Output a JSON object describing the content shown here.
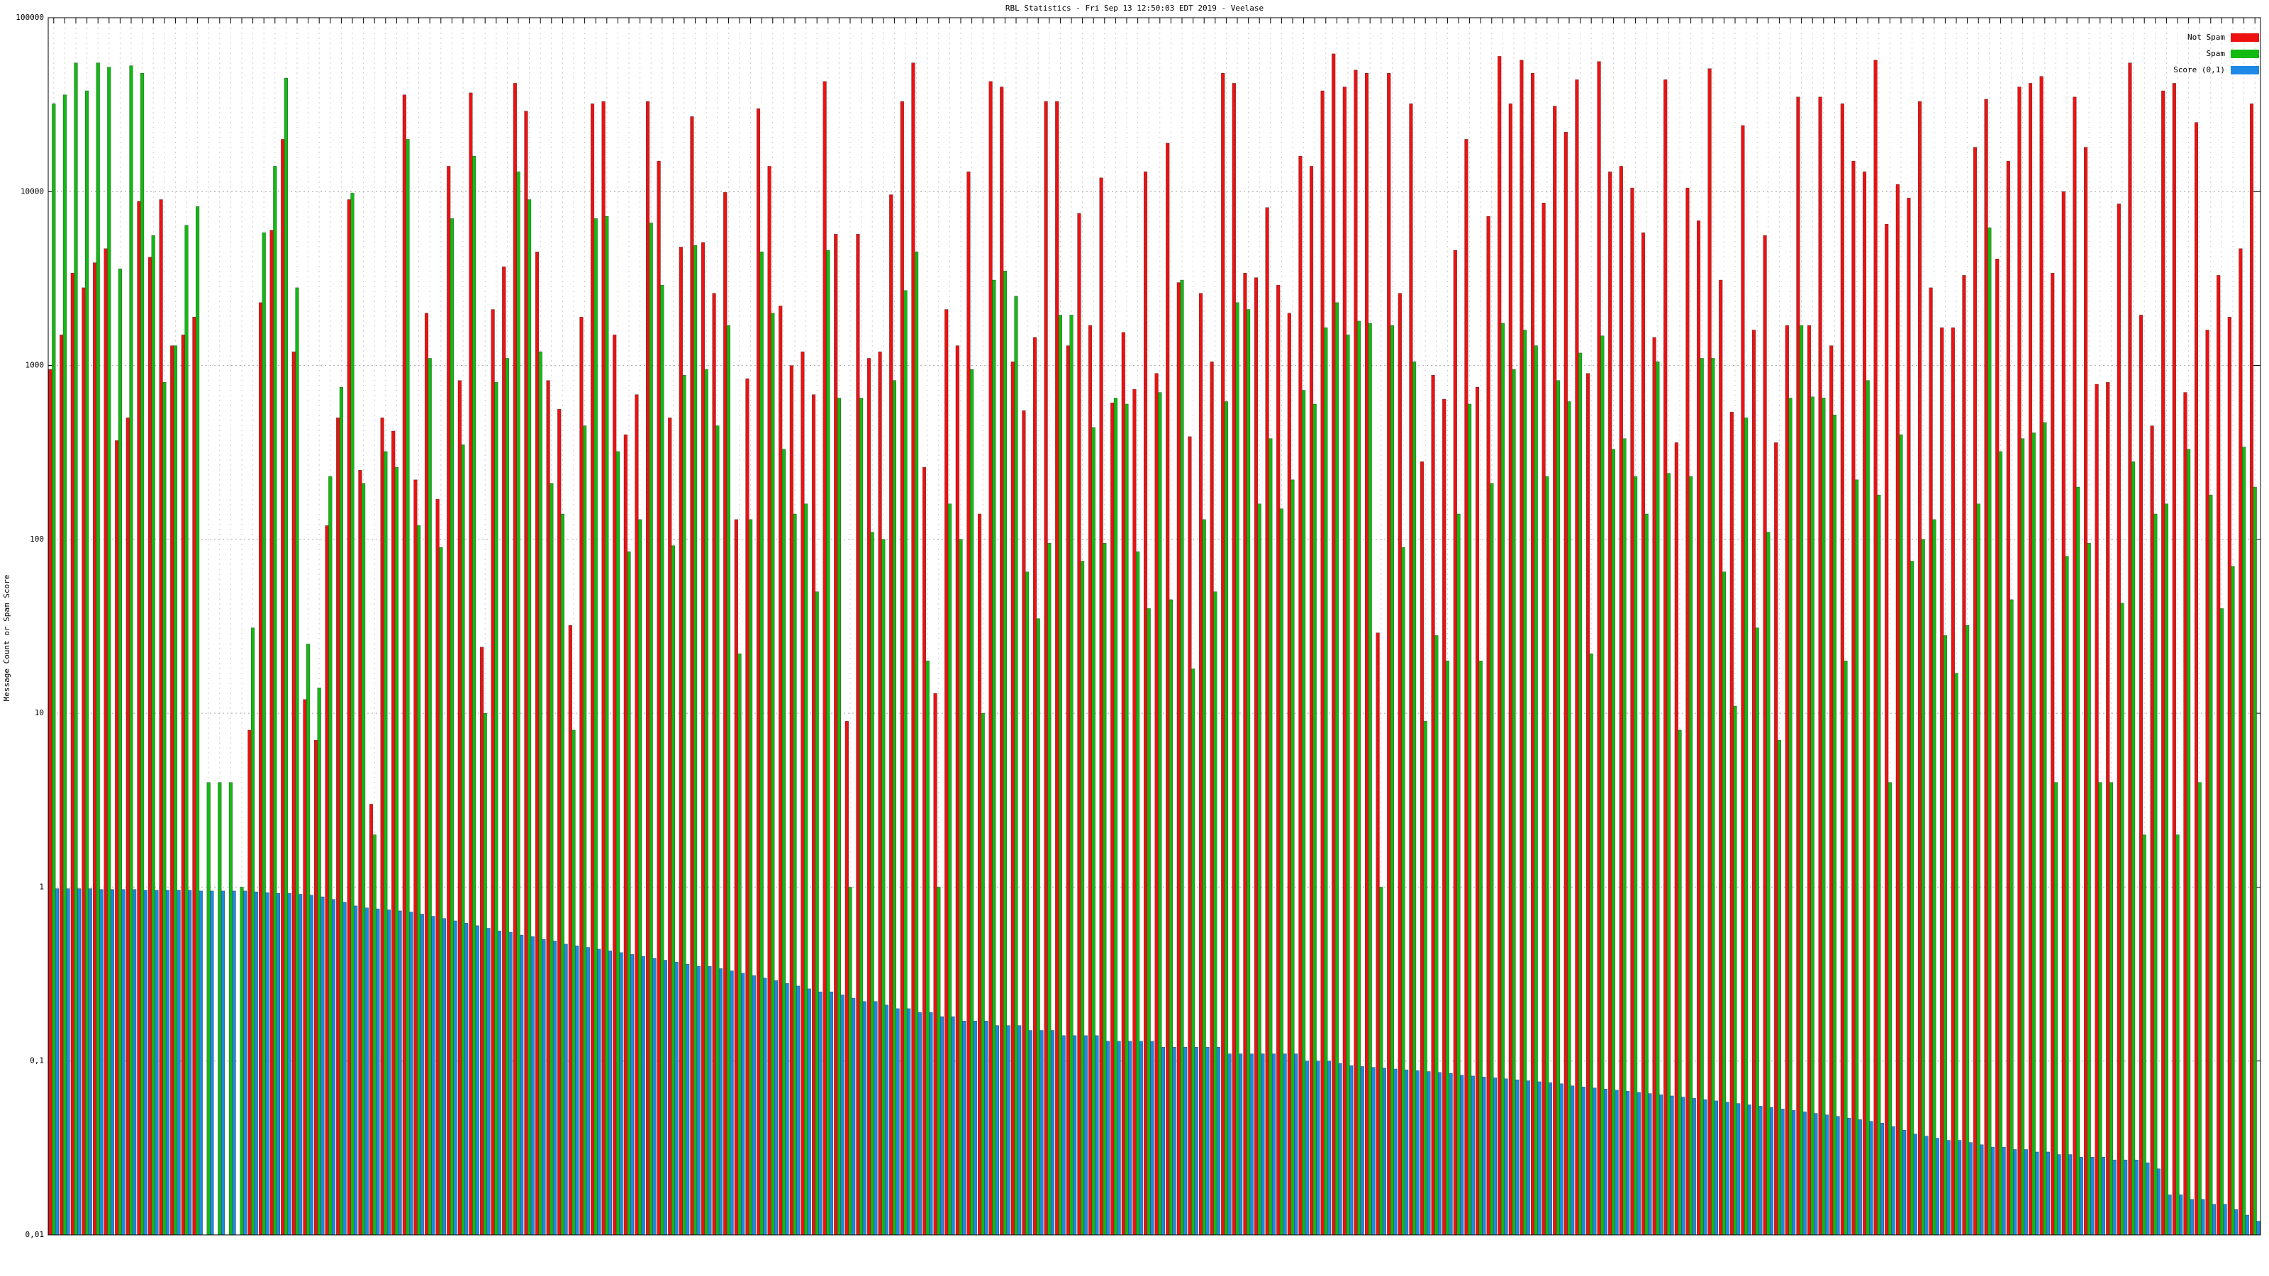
{
  "chart_data": {
    "type": "bar",
    "title": "RBL Statistics - Fri Sep 13 12:50:03 EDT 2019 - Veelase",
    "y_label": "Message Count or Spam Score",
    "log_scale": true,
    "grid": true,
    "legend_position": "top-right",
    "ylim": [
      0.01,
      100000
    ],
    "yticks": [
      {
        "value": 0.01,
        "label": "0,01"
      },
      {
        "value": 0.1,
        "label": "0,1"
      },
      1,
      10,
      100,
      1000,
      10000,
      100000
    ],
    "series": [
      {
        "name": "Not Spam",
        "color": "#ee1111",
        "values": [
          950,
          1500,
          3400,
          2800,
          3900,
          4700,
          370,
          500,
          8800,
          4200,
          9000,
          1300,
          1500,
          1900,
          null,
          null,
          null,
          null,
          8,
          2300,
          6000,
          20000,
          1200,
          12,
          7,
          120,
          500,
          9000,
          250,
          3,
          500,
          420,
          36000,
          220,
          2000,
          170,
          14000,
          820,
          37000,
          24,
          2100,
          3700,
          42000,
          29000,
          4500,
          820,
          560,
          32,
          1900,
          32000,
          33000,
          1500,
          400,
          680,
          33000,
          15000,
          500,
          4800,
          27000,
          5100,
          2600,
          9900,
          130,
          840,
          30000,
          14000,
          2200,
          1000,
          1200,
          680,
          43000,
          5700,
          9,
          5700,
          1100,
          1200,
          9600,
          33000,
          55000,
          260,
          13,
          2100,
          1300,
          13000,
          140,
          43000,
          40000,
          1050,
          550,
          1450,
          33000,
          33000,
          1300,
          7500,
          1700,
          12000,
          610,
          1550,
          730,
          13000,
          900,
          19000,
          3000,
          390,
          2600,
          1050,
          48000,
          42000,
          3400,
          3200,
          8100,
          2900,
          2000,
          16000,
          14000,
          38000,
          62000,
          40000,
          50000,
          48000,
          29,
          48000,
          2600,
          32000,
          280,
          880,
          640,
          4600,
          20000,
          750,
          7200,
          60000,
          32000,
          57000,
          48000,
          8600,
          31000,
          22000,
          44000,
          900,
          56000,
          13000,
          14000,
          10500,
          5800,
          1450,
          44000,
          360,
          10500,
          6800,
          51000,
          3100,
          540,
          24000,
          1600,
          5600,
          360,
          1700,
          35000,
          1700,
          35000,
          1300,
          32000,
          15000,
          13000,
          57000,
          6500,
          11000,
          9200,
          33000,
          2800,
          1650,
          1650,
          3300,
          18000,
          34000,
          4100,
          15000,
          40000,
          42000,
          46000,
          3400,
          10000,
          35000,
          18000,
          780,
          800,
          8500,
          55000,
          1950,
          450,
          38000,
          42000,
          700,
          25000,
          1600,
          3300,
          1900,
          4700,
          32000
        ]
      },
      {
        "name": "Spam",
        "color": "#11bb11",
        "values": [
          32000,
          36000,
          55000,
          38000,
          55000,
          52000,
          3600,
          53000,
          48000,
          5600,
          800,
          1300,
          6400,
          8200,
          4,
          4,
          4,
          1,
          31,
          5800,
          14000,
          45000,
          2800,
          25,
          14,
          230,
          750,
          9800,
          210,
          2,
          320,
          260,
          20000,
          120,
          1100,
          90,
          7000,
          350,
          16000,
          10,
          800,
          1100,
          13000,
          9000,
          1200,
          210,
          140,
          8,
          450,
          7000,
          7200,
          320,
          85,
          130,
          6600,
          2900,
          92,
          880,
          4900,
          950,
          450,
          1700,
          22,
          130,
          4500,
          2000,
          330,
          140,
          160,
          50,
          4600,
          650,
          1,
          650,
          110,
          100,
          820,
          2700,
          4500,
          20,
          1,
          160,
          100,
          950,
          10,
          3100,
          3500,
          2500,
          65,
          35,
          95,
          1950,
          1950,
          75,
          440,
          95,
          650,
          600,
          85,
          40,
          700,
          45,
          3100,
          18,
          130,
          50,
          620,
          2300,
          2100,
          160,
          380,
          150,
          220,
          720,
          600,
          1650,
          2300,
          1500,
          1800,
          1750,
          1,
          1700,
          90,
          1050,
          9,
          28,
          20,
          140,
          600,
          20,
          210,
          1750,
          950,
          1600,
          1300,
          230,
          820,
          620,
          1180,
          22,
          1480,
          330,
          380,
          230,
          140,
          1050,
          240,
          8,
          230,
          1100,
          1100,
          65,
          11,
          500,
          31,
          110,
          7,
          650,
          1700,
          660,
          650,
          520,
          20,
          220,
          820,
          180,
          4,
          400,
          75,
          100,
          130,
          28,
          17,
          32,
          160,
          6200,
          320,
          45,
          380,
          410,
          470,
          4,
          80,
          200,
          95,
          4,
          4,
          43,
          280,
          2,
          140,
          160,
          2,
          330,
          4,
          180,
          40,
          70,
          340,
          200
        ]
      },
      {
        "name": "Score (0,1)",
        "color": "#1e88e5",
        "values": [
          0.98,
          0.98,
          0.98,
          0.98,
          0.97,
          0.97,
          0.97,
          0.97,
          0.96,
          0.96,
          0.96,
          0.96,
          0.96,
          0.95,
          0.95,
          0.95,
          0.95,
          0.95,
          0.94,
          0.93,
          0.92,
          0.92,
          0.91,
          0.9,
          0.88,
          0.85,
          0.82,
          0.78,
          0.76,
          0.75,
          0.74,
          0.73,
          0.72,
          0.7,
          0.68,
          0.66,
          0.64,
          0.62,
          0.6,
          0.58,
          0.56,
          0.55,
          0.53,
          0.52,
          0.5,
          0.49,
          0.47,
          0.46,
          0.45,
          0.44,
          0.43,
          0.42,
          0.41,
          0.4,
          0.39,
          0.38,
          0.37,
          0.36,
          0.35,
          0.35,
          0.34,
          0.33,
          0.32,
          0.31,
          0.3,
          0.29,
          0.28,
          0.27,
          0.26,
          0.25,
          0.25,
          0.24,
          0.23,
          0.22,
          0.22,
          0.21,
          0.2,
          0.2,
          0.19,
          0.19,
          0.18,
          0.18,
          0.17,
          0.17,
          0.17,
          0.16,
          0.16,
          0.16,
          0.15,
          0.15,
          0.15,
          0.14,
          0.14,
          0.14,
          0.14,
          0.13,
          0.13,
          0.13,
          0.13,
          0.13,
          0.12,
          0.12,
          0.12,
          0.12,
          0.12,
          0.12,
          0.11,
          0.11,
          0.11,
          0.11,
          0.11,
          0.11,
          0.11,
          0.1,
          0.1,
          0.1,
          0.097,
          0.094,
          0.093,
          0.092,
          0.091,
          0.09,
          0.089,
          0.088,
          0.087,
          0.086,
          0.085,
          0.083,
          0.082,
          0.081,
          0.08,
          0.079,
          0.078,
          0.077,
          0.076,
          0.075,
          0.074,
          0.072,
          0.071,
          0.07,
          0.069,
          0.068,
          0.067,
          0.066,
          0.065,
          0.064,
          0.063,
          0.062,
          0.061,
          0.06,
          0.059,
          0.058,
          0.057,
          0.056,
          0.055,
          0.054,
          0.053,
          0.052,
          0.051,
          0.05,
          0.049,
          0.048,
          0.047,
          0.046,
          0.045,
          0.044,
          0.042,
          0.04,
          0.038,
          0.037,
          0.036,
          0.035,
          0.035,
          0.034,
          0.033,
          0.032,
          0.032,
          0.031,
          0.031,
          0.03,
          0.03,
          0.029,
          0.029,
          0.028,
          0.028,
          0.028,
          0.027,
          0.027,
          0.027,
          0.026,
          0.024,
          0.017,
          0.017,
          0.016,
          0.016,
          0.015,
          0.015,
          0.014,
          0.013,
          0.012
        ]
      }
    ]
  }
}
